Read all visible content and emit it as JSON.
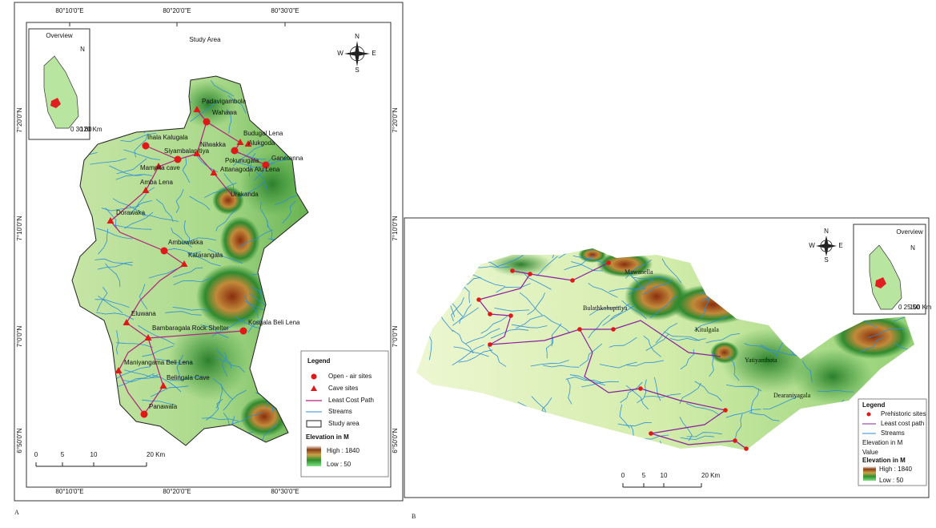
{
  "panel_a": {
    "label": "A",
    "title": "Study Area",
    "overview_title": "Overview",
    "overview_north": "N",
    "overview_scale": [
      "0 30 60",
      "120 Km"
    ],
    "compass": {
      "n": "N",
      "s": "S",
      "e": "E",
      "w": "W"
    },
    "top_ticks": [
      "80°10'0\"E",
      "80°20'0\"E",
      "80°30'0\"E"
    ],
    "bottom_ticks": [
      "80°10'0\"E",
      "80°20'0\"E",
      "80°30'0\"E"
    ],
    "left_ticks": [
      "7°20'0\"N",
      "7°10'0\"N",
      "7°0'0\"N",
      "6°50'0\"N"
    ],
    "right_ticks": [
      "7°20'0\"N",
      "7°10'0\"N",
      "7°0'0\"N",
      "6°50'0\"N"
    ],
    "sites": [
      "Padavigambola",
      "Wahawa",
      "Budugal Lena",
      "Alukgoda",
      "Ihala Kalugala",
      "Siyambalapitiya",
      "Nilwakka",
      "Pokunugala",
      "Ganetenna",
      "Attanagoda Alu Lena",
      "Mampita cave",
      "Amba Lena",
      "Urakanda",
      "Dorawaka",
      "Ambuwakka",
      "Katarangala",
      "Eluwana",
      "Kosgala Beli Lena",
      "Bambaragala Rock Shelter",
      "Maniyangama Beli Lena",
      "Belingala Cave",
      "Panawala"
    ],
    "legend": {
      "title": "Legend",
      "items": [
        "Open - air sites",
        "Cave sites",
        "Least Cost Path",
        "Streams",
        "Study area"
      ],
      "elevation_title": "Elevation in M",
      "high": "High : 1840",
      "low": "Low :  50"
    },
    "scale": [
      "0",
      "5",
      "10",
      "20 Km"
    ]
  },
  "panel_b": {
    "label": "B",
    "overview_title": "Overview",
    "overview_north": "N",
    "overview_scale": [
      "0 25 50",
      "100 Km"
    ],
    "compass": {
      "n": "N",
      "s": "S",
      "e": "E",
      "w": "W"
    },
    "places": [
      "Mawanella",
      "Bulathkohupitiya",
      "Kitulgala",
      "Yatiyanthota",
      "Dearaniyagala"
    ],
    "legend": {
      "title": "Legend",
      "items": [
        "Prehistoric sites",
        "Least cost path",
        "Streams"
      ],
      "elevation_title": "Elevation in M",
      "value": "Value",
      "elevation_subtitle": "Elevation in M",
      "high": "High : 1840",
      "low": "Low :  50"
    },
    "scale": [
      "0",
      "5",
      "10",
      "20 Km"
    ]
  }
}
